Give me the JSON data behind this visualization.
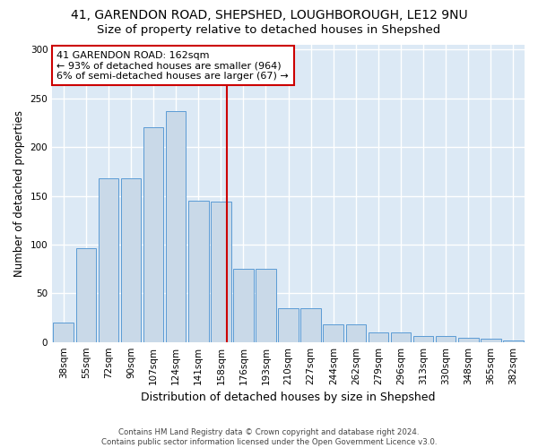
{
  "title1": "41, GARENDON ROAD, SHEPSHED, LOUGHBOROUGH, LE12 9NU",
  "title2": "Size of property relative to detached houses in Shepshed",
  "xlabel": "Distribution of detached houses by size in Shepshed",
  "ylabel": "Number of detached properties",
  "footer1": "Contains HM Land Registry data © Crown copyright and database right 2024.",
  "footer2": "Contains public sector information licensed under the Open Government Licence v3.0.",
  "categories": [
    "38sqm",
    "55sqm",
    "72sqm",
    "90sqm",
    "107sqm",
    "124sqm",
    "141sqm",
    "158sqm",
    "176sqm",
    "193sqm",
    "210sqm",
    "227sqm",
    "244sqm",
    "262sqm",
    "279sqm",
    "296sqm",
    "313sqm",
    "330sqm",
    "348sqm",
    "365sqm",
    "382sqm"
  ],
  "bar_heights": [
    20,
    96,
    168,
    168,
    220,
    237,
    145,
    144,
    75,
    75,
    35,
    35,
    18,
    18,
    10,
    10,
    6,
    6,
    4,
    3,
    2
  ],
  "bar_color": "#c9d9e8",
  "bar_edge_color": "#5b9bd5",
  "vline_color": "#cc0000",
  "annotation_box_color": "#cc0000",
  "annotation_line1": "41 GARENDON ROAD: 162sqm",
  "annotation_line2": "← 93% of detached houses are smaller (964)",
  "annotation_line3": "6% of semi-detached houses are larger (67) →",
  "vline_pos": 7.27,
  "ylim": [
    0,
    305
  ],
  "yticks": [
    0,
    50,
    100,
    150,
    200,
    250,
    300
  ],
  "bg_color": "#dce9f5",
  "grid_color": "#ffffff",
  "title1_fontsize": 10,
  "title2_fontsize": 9.5,
  "xlabel_fontsize": 9,
  "ylabel_fontsize": 8.5,
  "tick_fontsize": 7.5,
  "annotation_fontsize": 8
}
